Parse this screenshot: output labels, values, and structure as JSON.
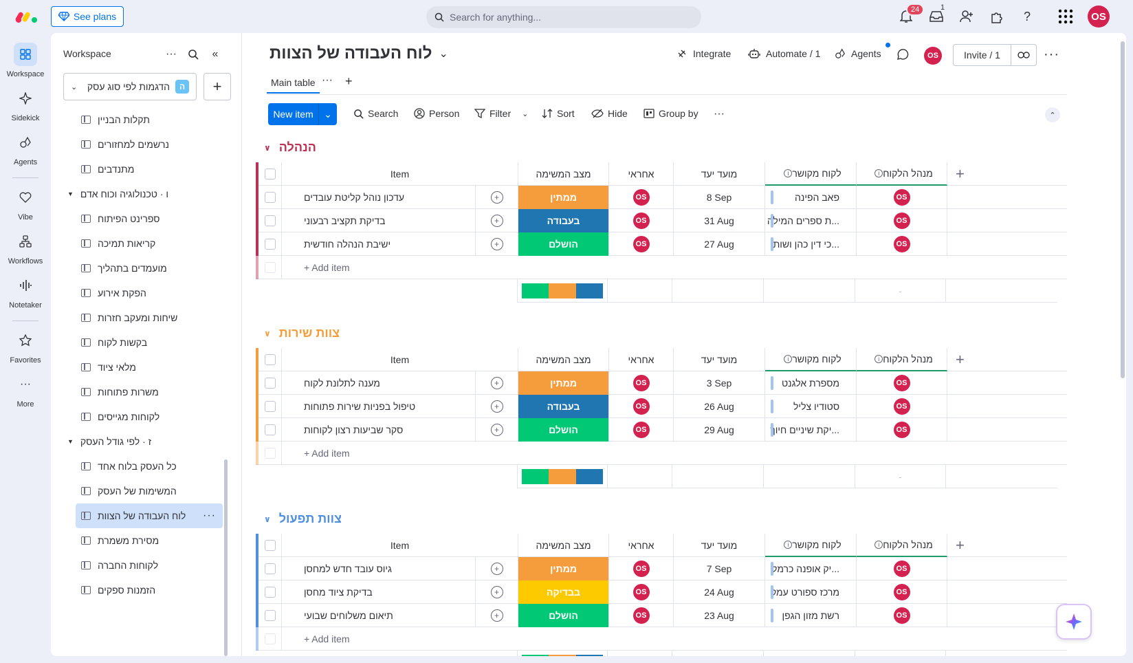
{
  "topbar": {
    "see_plans": "See plans",
    "search_placeholder": "Search for anything...",
    "notifications_count": "24",
    "inbox_count": "1",
    "avatar": "OS"
  },
  "rail": [
    {
      "label": "Workspace",
      "icon": "grid-icon"
    },
    {
      "label": "Sidekick",
      "icon": "sparkle-icon"
    },
    {
      "label": "Agents",
      "icon": "agents-icon"
    },
    {
      "label": "Vibe",
      "icon": "heart-icon"
    },
    {
      "label": "Workflows",
      "icon": "workflow-icon"
    },
    {
      "label": "Notetaker",
      "icon": "soundwave-icon"
    },
    {
      "label": "Favorites",
      "icon": "star-icon"
    },
    {
      "label": "More",
      "icon": "more-icon"
    }
  ],
  "sidebar": {
    "title": "Workspace",
    "workspace_name": "הדגמות לפי סוג עסק",
    "workspace_badge": "ה",
    "items": [
      {
        "label": "תקלות הבניין",
        "type": "board"
      },
      {
        "label": "נרשמים למחזורים",
        "type": "board"
      },
      {
        "label": "מתנדבים",
        "type": "board"
      },
      {
        "label": "ו · טכנולוגיה וכוח אדם",
        "type": "folder"
      },
      {
        "label": "ספרינט הפיתוח",
        "type": "board"
      },
      {
        "label": "קריאות תמיכה",
        "type": "board"
      },
      {
        "label": "מועמדים בתהליך",
        "type": "board"
      },
      {
        "label": "הפקת אירוע",
        "type": "board"
      },
      {
        "label": "שיחות ומעקב חזרות",
        "type": "board"
      },
      {
        "label": "בקשות לקוח",
        "type": "board"
      },
      {
        "label": "מלאי ציוד",
        "type": "board"
      },
      {
        "label": "משרות פתוחות",
        "type": "board"
      },
      {
        "label": "לקוחות מגייסים",
        "type": "board"
      },
      {
        "label": "ז · לפי גודל העסק",
        "type": "folder"
      },
      {
        "label": "כל העסק בלוח אחד",
        "type": "board"
      },
      {
        "label": "המשימות של העסק",
        "type": "board"
      },
      {
        "label": "לוח העבודה של הצוות",
        "type": "board",
        "active": true
      },
      {
        "label": "מסירת משמרת",
        "type": "board"
      },
      {
        "label": "לקוחות החברה",
        "type": "board"
      },
      {
        "label": "הזמנות ספקים",
        "type": "board"
      }
    ]
  },
  "board": {
    "title": "לוח העבודה של הצוות",
    "integrate": "Integrate",
    "automate": "Automate / 1",
    "agents": "Agents",
    "avatar": "OS",
    "invite": "Invite / 1",
    "tab_main": "Main table",
    "toolbar": {
      "new_item": "New item",
      "search": "Search",
      "person": "Person",
      "filter": "Filter",
      "sort": "Sort",
      "hide": "Hide",
      "group_by": "Group by"
    }
  },
  "columns": {
    "item": "Item",
    "status": "מצב המשימה",
    "owner": "אחראי",
    "date": "מועד יעד",
    "customer": "לקוח מקושר",
    "manager": "מנהל הלקוח"
  },
  "status_colors": {
    "waiting": "#f59d3c",
    "working": "#1f76b0",
    "done": "#00c875",
    "review": "#fdca00"
  },
  "groups": [
    {
      "title": "הנהלה",
      "color": "#bb3354",
      "add_item": "+ Add item",
      "rows": [
        {
          "item": "עדכון נוהל קליטת עובדים",
          "status": "ממתין",
          "status_key": "waiting",
          "owner": "OS",
          "date": "8 Sep",
          "customer": "פאב הפינה",
          "manager": "OS"
        },
        {
          "item": "בדיקת תקציב רבעוני",
          "status": "בעבודה",
          "status_key": "working",
          "owner": "OS",
          "date": "31 Aug",
          "customer": "...ת ספרים המילה",
          "manager": "OS"
        },
        {
          "item": "ישיבת הנהלה חודשית",
          "status": "הושלם",
          "status_key": "done",
          "owner": "OS",
          "date": "27 Aug",
          "customer": "...כי דין כהן ושות",
          "manager": "OS"
        }
      ],
      "summary_dash": "-"
    },
    {
      "title": "צוות שירות",
      "color": "#f59d3c",
      "add_item": "+ Add item",
      "rows": [
        {
          "item": "מענה לתלונת לקוח",
          "status": "ממתין",
          "status_key": "waiting",
          "owner": "OS",
          "date": "3 Sep",
          "customer": "מספרת אלגנט",
          "manager": "OS"
        },
        {
          "item": "טיפול בפניות שירות פתוחות",
          "status": "בעבודה",
          "status_key": "working",
          "owner": "OS",
          "date": "26 Aug",
          "customer": "סטודיו צליל",
          "manager": "OS"
        },
        {
          "item": "סקר שביעות רצון לקוחות",
          "status": "הושלם",
          "status_key": "done",
          "owner": "OS",
          "date": "29 Aug",
          "customer": "...יקת שיניים חיוך",
          "manager": "OS"
        }
      ],
      "summary_dash": "-"
    },
    {
      "title": "צוות תפעול",
      "color": "#4f8fe0",
      "add_item": "+ Add item",
      "rows": [
        {
          "item": "גיוס עובד חדש למחסן",
          "status": "ממתין",
          "status_key": "waiting",
          "owner": "OS",
          "date": "7 Sep",
          "customer": "...יק אופנה כרמל",
          "manager": "OS"
        },
        {
          "item": "בדיקת ציוד מחסן",
          "status": "בבדיקה",
          "status_key": "review",
          "owner": "OS",
          "date": "24 Aug",
          "customer": "מרכז ספורט עמק",
          "manager": "OS"
        },
        {
          "item": "תיאום משלוחים שבועי",
          "status": "הושלם",
          "status_key": "done",
          "owner": "OS",
          "date": "23 Aug",
          "customer": "רשת מזון הגפן",
          "manager": "OS"
        }
      ],
      "summary_dash": "-"
    }
  ]
}
